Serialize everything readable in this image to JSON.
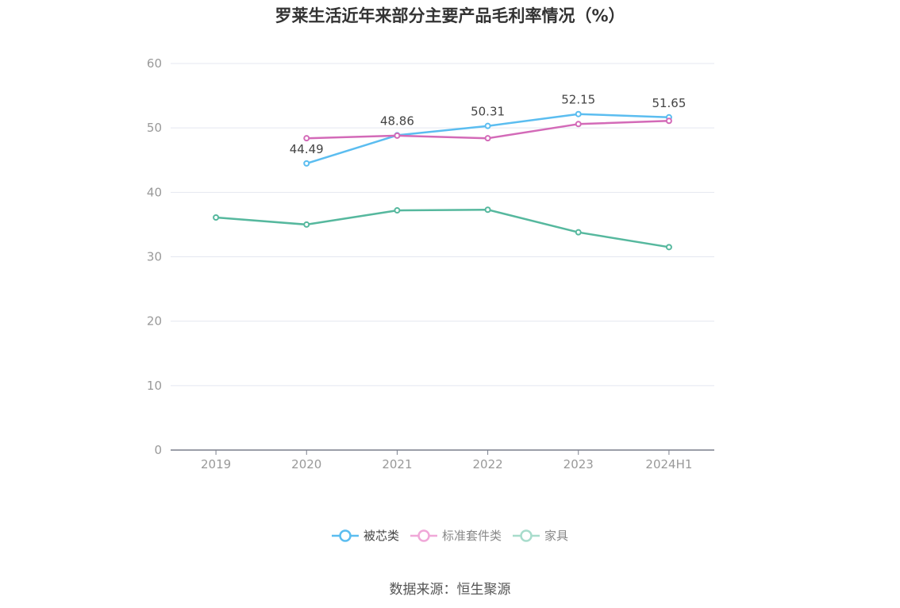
{
  "chart_data": {
    "type": "line",
    "title": "罗莱生活近年来部分主要产品毛利率情况（%）",
    "categories": [
      "2019",
      "2020",
      "2021",
      "2022",
      "2023",
      "2024H1"
    ],
    "ylim": [
      0,
      60
    ],
    "yticks": [
      0,
      10,
      20,
      30,
      40,
      50,
      60
    ],
    "grid": true,
    "legend_position": "bottom",
    "series": [
      {
        "name": "被芯类",
        "color": "#5bbdf0",
        "legend_color": "#5bbdf0",
        "label_color": "#444444",
        "values": [
          null,
          44.49,
          48.86,
          50.31,
          52.15,
          51.65
        ],
        "show_labels": true
      },
      {
        "name": "标准套件类",
        "color": "#d36ab8",
        "legend_color": "#f0a8d8",
        "label_color": "#888888",
        "values": [
          null,
          48.4,
          48.8,
          48.4,
          50.6,
          51.1
        ],
        "show_labels": false
      },
      {
        "name": "家具",
        "color": "#56b89e",
        "legend_color": "#a8dccc",
        "label_color": "#888888",
        "values": [
          36.1,
          35.0,
          37.2,
          37.3,
          33.8,
          31.5
        ],
        "show_labels": false
      }
    ]
  },
  "source": "数据来源：恒生聚源"
}
